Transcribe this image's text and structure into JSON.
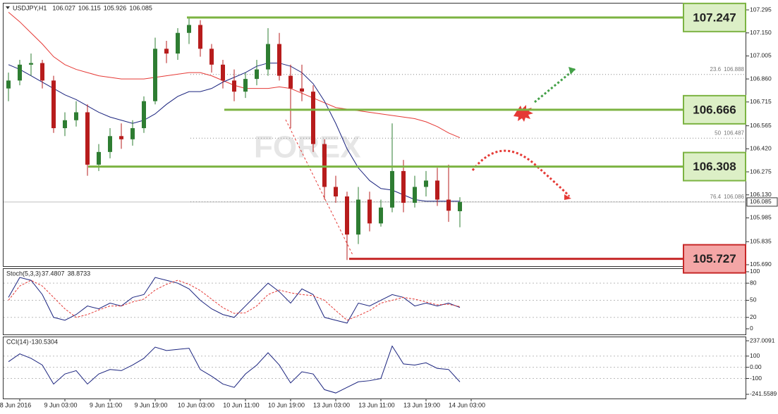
{
  "chart_data": [
    {
      "type": "candlestick",
      "title": "USDJPY,H1",
      "header_values": [
        106.027,
        106.115,
        105.926,
        106.085
      ],
      "categories": [
        null,
        "8 Jun 2016",
        null,
        null,
        null,
        "9 Jun 03:00",
        null,
        null,
        null,
        "9 Jun 11:00",
        null,
        null,
        null,
        "9 Jun 19:00",
        null,
        null,
        null,
        "10 Jun 03:00",
        null,
        null,
        null,
        "10 Jun 11:00",
        null,
        null,
        null,
        "10 Jun 19:00",
        null,
        null,
        null,
        "13 Jun 03:00",
        null,
        null,
        null,
        "13 Jun 11:00",
        null,
        null,
        null,
        "13 Jun 19:00",
        null,
        null,
        null,
        "14 Jun 03:00"
      ],
      "open": [
        106.8,
        106.85,
        106.95,
        106.96,
        106.85,
        106.55,
        106.6,
        106.65,
        106.32,
        106.4,
        106.5,
        106.48,
        106.55,
        106.72,
        107.05,
        107.02,
        107.15,
        107.2,
        107.05,
        106.95,
        106.85,
        106.78,
        106.86,
        106.92,
        107.08,
        106.88,
        106.8,
        106.78,
        106.45,
        106.18,
        106.12,
        105.88,
        106.1,
        105.95,
        106.05,
        106.28,
        106.08,
        106.18,
        106.22,
        106.1,
        106.027,
        null
      ],
      "high": [
        106.9,
        106.98,
        107.02,
        106.98,
        106.88,
        106.65,
        106.72,
        106.7,
        106.45,
        106.55,
        106.58,
        106.6,
        106.75,
        107.12,
        107.1,
        107.18,
        107.25,
        107.23,
        107.08,
        106.98,
        106.92,
        106.9,
        106.98,
        107.18,
        107.15,
        106.95,
        106.95,
        106.82,
        106.48,
        106.25,
        106.15,
        106.18,
        106.15,
        106.1,
        106.58,
        106.35,
        106.25,
        106.28,
        106.3,
        106.32,
        106.115,
        null
      ],
      "low": [
        106.72,
        106.82,
        106.88,
        106.8,
        106.52,
        106.5,
        106.56,
        106.25,
        106.28,
        106.36,
        106.42,
        106.44,
        106.52,
        106.7,
        106.96,
        106.98,
        107.08,
        107.0,
        106.9,
        106.8,
        106.72,
        106.74,
        106.82,
        106.88,
        106.85,
        106.55,
        106.72,
        106.4,
        106.1,
        106.08,
        105.72,
        105.82,
        105.9,
        105.93,
        106.02,
        106.02,
        106.05,
        106.12,
        106.06,
        105.96,
        105.926,
        null
      ],
      "close": [
        106.85,
        106.95,
        106.96,
        106.85,
        106.55,
        106.6,
        106.65,
        106.32,
        106.4,
        106.5,
        106.48,
        106.55,
        106.72,
        107.05,
        107.02,
        107.15,
        107.2,
        107.05,
        106.95,
        106.85,
        106.78,
        106.86,
        106.92,
        107.08,
        106.88,
        106.8,
        106.78,
        106.45,
        106.18,
        106.12,
        105.88,
        106.1,
        105.95,
        106.05,
        106.28,
        106.08,
        106.18,
        106.22,
        106.1,
        106.03,
        106.085,
        null
      ],
      "up_color": "#2e7d32",
      "down_color": "#b71c1c",
      "series": [
        {
          "color": "#e53935",
          "values": [
            107.28,
            107.22,
            107.15,
            107.08,
            107.0,
            106.95,
            106.92,
            106.9,
            106.88,
            106.87,
            106.86,
            106.86,
            106.86,
            106.87,
            106.88,
            106.89,
            106.9,
            106.9,
            106.88,
            106.85,
            106.82,
            106.8,
            106.8,
            106.8,
            106.81,
            106.8,
            106.77,
            106.74,
            106.71,
            106.68,
            106.67,
            106.66,
            106.65,
            106.64,
            106.63,
            106.62,
            106.61,
            106.59,
            106.56,
            106.52,
            106.49,
            null
          ]
        },
        {
          "color": "#1a237e",
          "values": [
            106.95,
            106.92,
            106.88,
            106.84,
            106.8,
            106.76,
            106.73,
            106.69,
            106.65,
            106.62,
            106.6,
            106.58,
            106.6,
            106.64,
            106.7,
            106.75,
            106.78,
            106.78,
            106.8,
            106.84,
            106.87,
            106.9,
            106.94,
            106.96,
            106.96,
            106.94,
            106.9,
            106.83,
            106.72,
            106.58,
            106.42,
            106.3,
            106.22,
            106.17,
            106.16,
            106.13,
            106.1,
            106.09,
            106.09,
            106.09,
            106.09,
            null
          ]
        }
      ],
      "levels": [
        {
          "value": 107.247,
          "color": "#7cb342"
        },
        {
          "value": 106.666,
          "color": "#7cb342"
        },
        {
          "value": 106.308,
          "color": "#7cb342"
        },
        {
          "value": 105.727,
          "color": "#c62828"
        }
      ],
      "fib_levels": [
        {
          "ratio": 23.6,
          "value": 106.888
        },
        {
          "ratio": 50.0,
          "value": 106.487
        },
        {
          "ratio": 76.4,
          "value": 106.086
        }
      ],
      "current_price": 106.085,
      "ylim": [
        105.681,
        107.335
      ],
      "yticks": [
        107.295,
        {
          "value": 107.15,
          "label": "107.150"
        },
        107.005,
        {
          "value": 106.86,
          "label": "106.860"
        },
        106.715,
        106.565,
        {
          "value": 106.42,
          "label": "106.420"
        },
        106.275,
        {
          "value": 106.13,
          "label": "106.130"
        },
        105.985,
        105.835,
        {
          "value": 105.69,
          "label": "105.690"
        }
      ]
    },
    {
      "type": "line",
      "title": "Stoch(5,3,3)",
      "header_values": [
        37.4807,
        38.8733
      ],
      "series": [
        {
          "color": "#1a237e",
          "dashed": false,
          "values": [
            55,
            90,
            85,
            60,
            20,
            15,
            25,
            40,
            35,
            45,
            40,
            55,
            60,
            90,
            85,
            80,
            70,
            50,
            35,
            25,
            20,
            40,
            60,
            80,
            65,
            45,
            70,
            60,
            20,
            15,
            10,
            45,
            40,
            50,
            60,
            55,
            40,
            45,
            40,
            45,
            37.4807,
            null
          ]
        },
        {
          "color": "#e53935",
          "dashed": true,
          "values": [
            50,
            75,
            85,
            75,
            55,
            35,
            20,
            25,
            33,
            40,
            40,
            47,
            52,
            68,
            78,
            85,
            78,
            67,
            52,
            37,
            27,
            28,
            40,
            60,
            68,
            63,
            60,
            58,
            50,
            32,
            15,
            23,
            32,
            45,
            50,
            55,
            52,
            47,
            42,
            43,
            38.8733,
            null
          ]
        }
      ],
      "ylim": [
        -9.9,
        104.9
      ],
      "yticks": [
        100,
        80,
        50,
        20,
        0
      ]
    },
    {
      "type": "line",
      "title": "CCI(14)",
      "header_values": [
        -130.5304
      ],
      "series": [
        {
          "color": "#1a237e",
          "dashed": false,
          "values": [
            50,
            120,
            80,
            20,
            -150,
            -60,
            -30,
            -150,
            -60,
            -20,
            -30,
            20,
            80,
            180,
            150,
            160,
            170,
            -20,
            -80,
            -150,
            -180,
            -60,
            20,
            130,
            20,
            -140,
            -40,
            -60,
            -200,
            -230,
            -180,
            -130,
            -120,
            -100,
            190,
            30,
            20,
            40,
            -10,
            -20,
            -130.5304,
            null
          ]
        }
      ],
      "ylim": [
        -279.4,
        268.5
      ],
      "yticks": [
        237.0091,
        100,
        {
          "value": 0,
          "label": "0.00"
        },
        -100,
        -241.5589
      ]
    }
  ]
}
